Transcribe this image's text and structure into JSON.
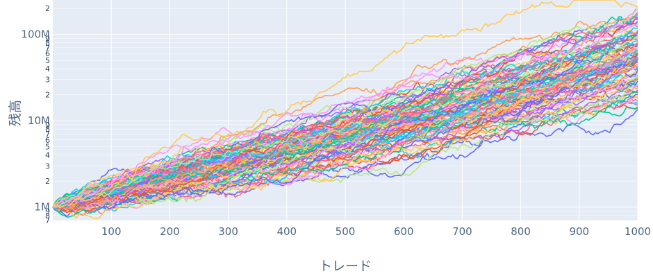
{
  "chart_data": {
    "type": "line",
    "title": "",
    "xlabel": "トレード",
    "ylabel": "残高",
    "x_range": [
      0,
      1000
    ],
    "x_ticks": [
      100,
      200,
      300,
      400,
      500,
      600,
      700,
      800,
      900,
      1000
    ],
    "y_scale": "log",
    "y_range": [
      700000,
      250000000
    ],
    "y_major_ticks": [
      {
        "value": 1000000,
        "label": "1M"
      },
      {
        "value": 10000000,
        "label": "10M"
      },
      {
        "value": 100000000,
        "label": "100M"
      }
    ],
    "y_minor_tick_digits": [
      2,
      3,
      4,
      5,
      6,
      7,
      8,
      9
    ],
    "grid": true,
    "legend": "none",
    "series_count": 100,
    "start_value": 1000000,
    "end_value_range": [
      13000000,
      210000000
    ],
    "series_colors": [
      "#636efa",
      "#EF553B",
      "#00cc96",
      "#ab63fa",
      "#FFA15A",
      "#19d3f3",
      "#FF6692",
      "#B6E880",
      "#FF97FF",
      "#FECB52"
    ]
  }
}
